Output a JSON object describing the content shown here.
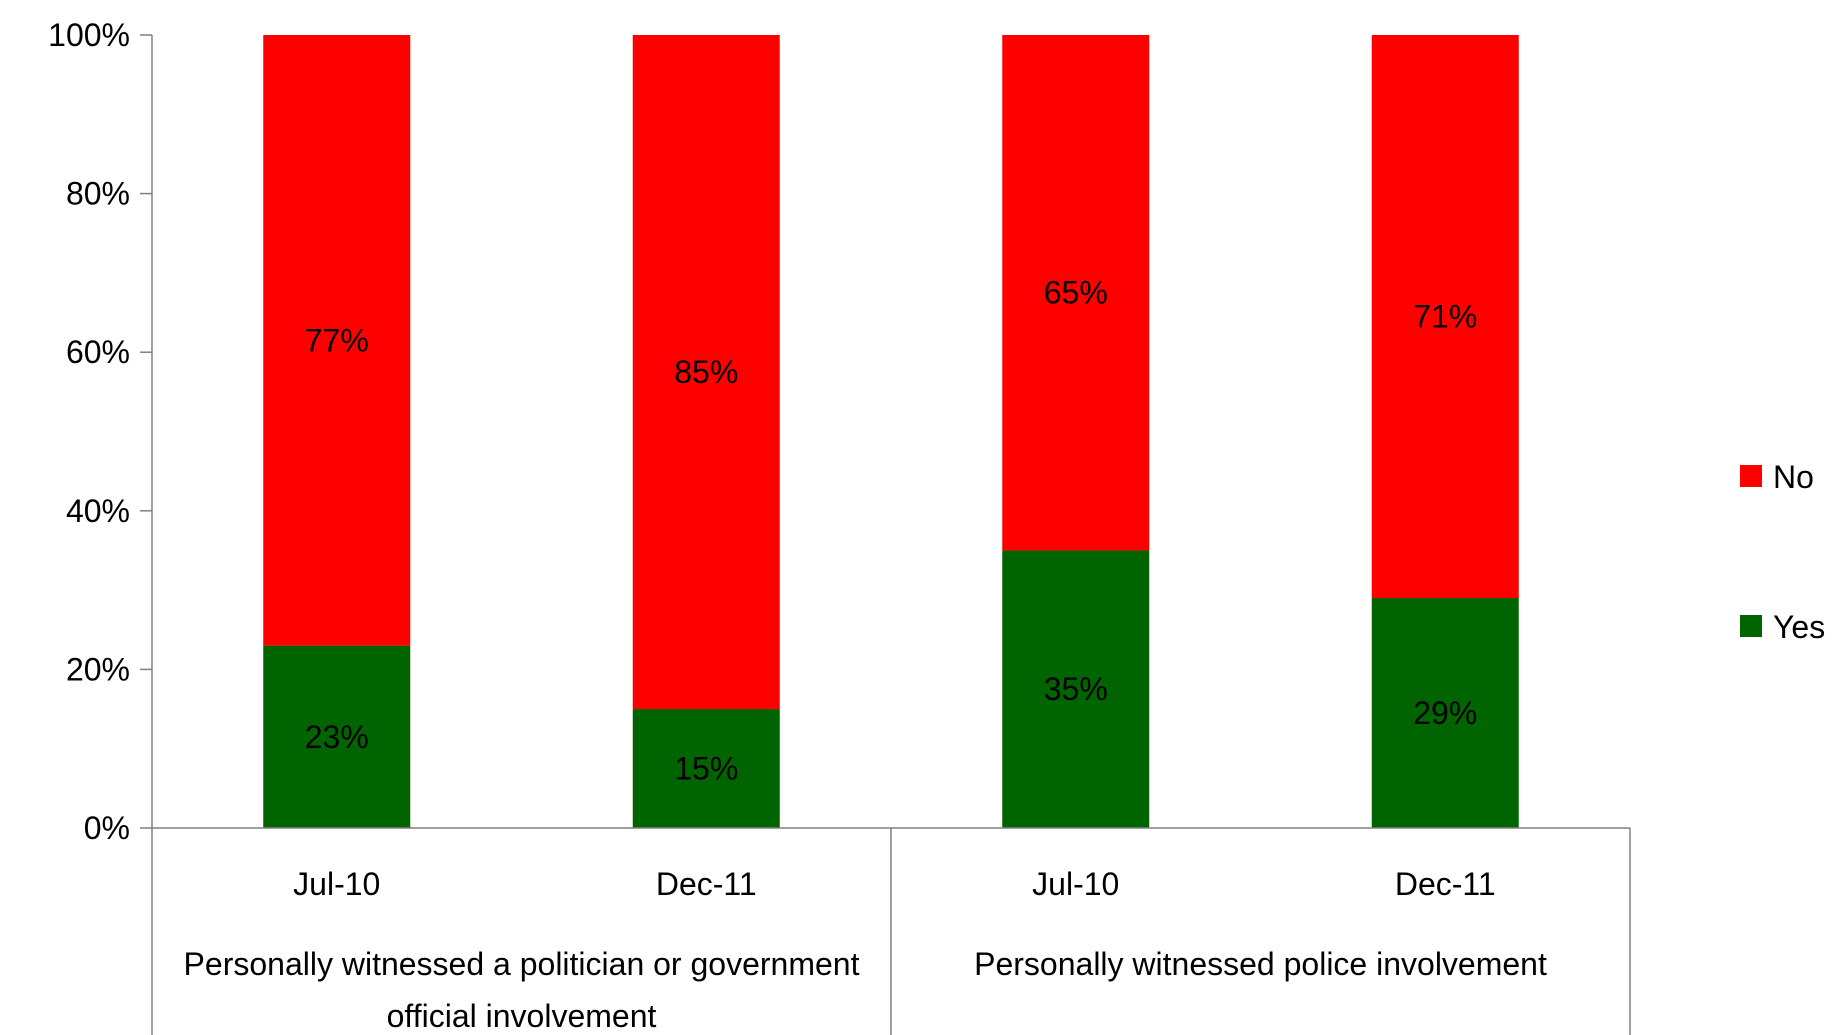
{
  "chart_data": {
    "type": "bar",
    "stacked": true,
    "percent_stacked": true,
    "groups": [
      {
        "label": "Personally witnessed a politician or government official involvement",
        "categories": [
          "Jul-10",
          "Dec-11"
        ]
      },
      {
        "label": "Personally witnessed police involvement",
        "categories": [
          "Jul-10",
          "Dec-11"
        ]
      }
    ],
    "categories": [
      "Jul-10",
      "Dec-11",
      "Jul-10",
      "Dec-11"
    ],
    "series": [
      {
        "name": "Yes",
        "color": "#006400",
        "values": [
          23,
          15,
          35,
          29
        ],
        "labels": [
          "23%",
          "15%",
          "35%",
          "29%"
        ]
      },
      {
        "name": "No",
        "color": "#ff0000",
        "values": [
          77,
          85,
          65,
          71
        ],
        "labels": [
          "77%",
          "85%",
          "65%",
          "71%"
        ]
      }
    ],
    "ylim": [
      0,
      100
    ],
    "yticks": [
      "0%",
      "20%",
      "40%",
      "60%",
      "80%",
      "100%"
    ],
    "legend_position": "right",
    "grid": false
  }
}
